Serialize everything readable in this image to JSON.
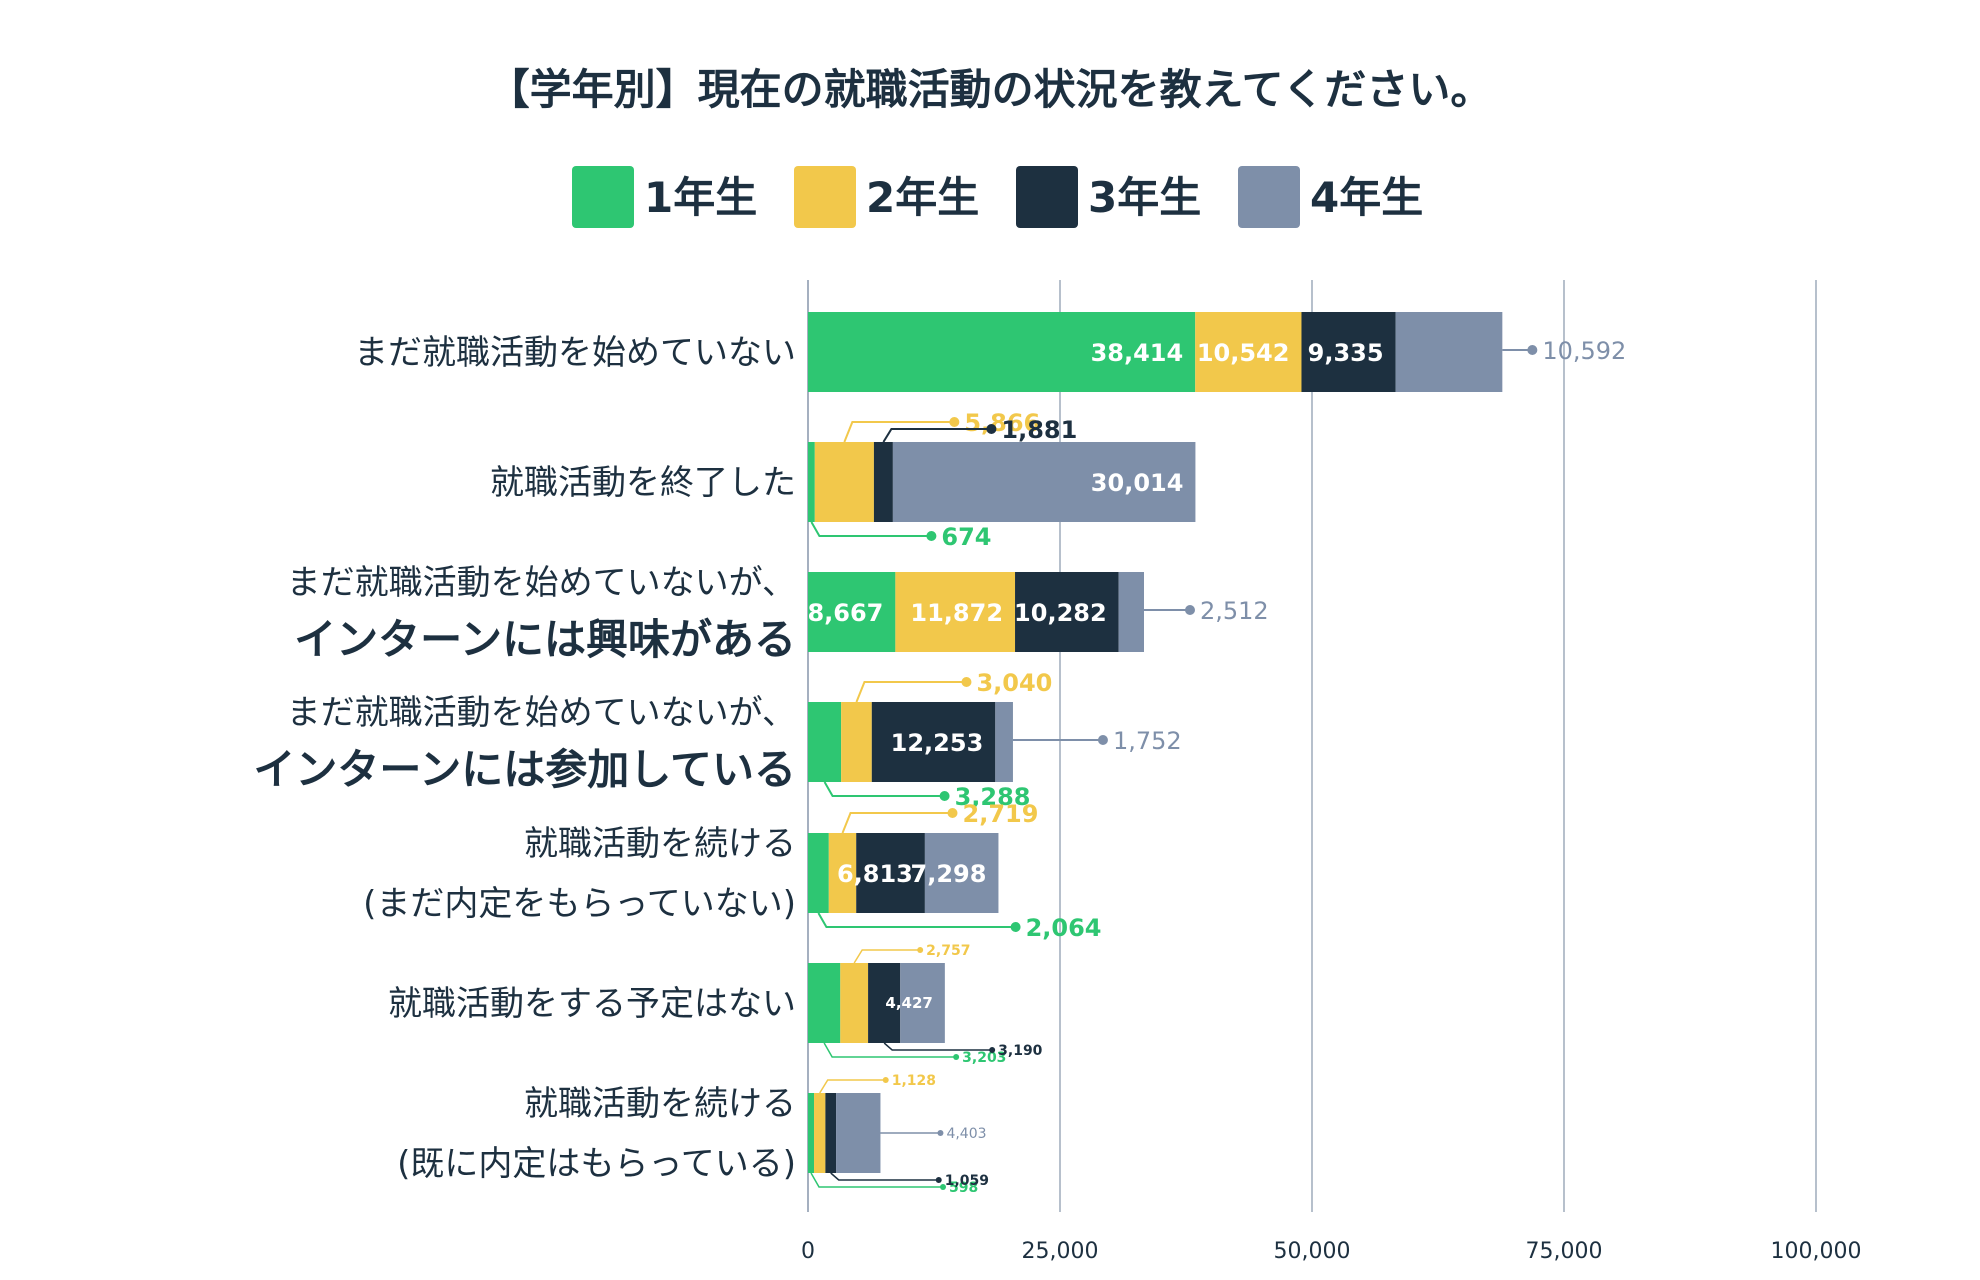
{
  "chart_data": {
    "type": "bar",
    "orientation": "horizontal",
    "stacked": true,
    "title": "【学年別】現在の就職活動の状況を教えてください。",
    "xlim": [
      0,
      100000
    ],
    "x_ticks": [
      0,
      25000,
      50000,
      75000,
      100000
    ],
    "x_tick_labels": [
      "0",
      "25,000",
      "50,000",
      "75,000",
      "100,000"
    ],
    "grid": true,
    "legend_position": "top-center",
    "categories": [
      {
        "lines": [
          {
            "text": "まだ就職活動を始めていない",
            "bold": false
          }
        ]
      },
      {
        "lines": [
          {
            "text": "就職活動を終了した",
            "bold": false
          }
        ]
      },
      {
        "lines": [
          {
            "text": "まだ就職活動を始めていないが、",
            "bold": false
          },
          {
            "text": "インターンには興味がある",
            "bold": true
          }
        ]
      },
      {
        "lines": [
          {
            "text": "まだ就職活動を始めていないが、",
            "bold": false
          },
          {
            "text": "インターンには参加している",
            "bold": true
          }
        ]
      },
      {
        "lines": [
          {
            "text": "就職活動を続ける",
            "bold": false
          },
          {
            "text": "(まだ内定をもらっていない)",
            "bold": false
          }
        ]
      },
      {
        "lines": [
          {
            "text": "就職活動をする予定はない",
            "bold": false
          }
        ]
      },
      {
        "lines": [
          {
            "text": "就職活動を続ける",
            "bold": false
          },
          {
            "text": "(既に内定はもらっている)",
            "bold": false
          }
        ]
      }
    ],
    "series": [
      {
        "name": "1年生",
        "color": "#2ec672",
        "values": [
          38414,
          674,
          8667,
          3288,
          2064,
          3203,
          598
        ],
        "value_labels": [
          "38,414",
          "674",
          "8,667",
          "3,288",
          "2,064",
          "3,203",
          "598"
        ]
      },
      {
        "name": "2年生",
        "color": "#f2c84b",
        "values": [
          10542,
          5866,
          11872,
          3040,
          2719,
          2757,
          1128
        ],
        "value_labels": [
          "10,542",
          "5,866",
          "11,872",
          "3,040",
          "2,719",
          "2,757",
          "1,128"
        ]
      },
      {
        "name": "3年生",
        "color": "#1d3040",
        "values": [
          9335,
          1881,
          10282,
          12253,
          6813,
          3190,
          1059
        ],
        "value_labels": [
          "9,335",
          "1,881",
          "10,282",
          "12,253",
          "6,813",
          "3,190",
          "1,059"
        ]
      },
      {
        "name": "4年生",
        "color": "#7e8fa9",
        "values": [
          10592,
          30014,
          2512,
          1752,
          7298,
          4427,
          4403
        ],
        "value_labels": [
          "10,592",
          "30,014",
          "2,512",
          "1,752",
          "7,298",
          "4,427",
          "4,403"
        ]
      }
    ],
    "label_modes": [
      [
        "in",
        "in",
        "in",
        "cr"
      ],
      [
        "cb",
        "ct",
        "ct",
        "in"
      ],
      [
        "in",
        "in",
        "in",
        "cr"
      ],
      [
        "cb",
        "ct",
        "in",
        "cr"
      ],
      [
        "cb",
        "ct",
        "in",
        "in"
      ],
      [
        "cb",
        "ct",
        "cb",
        "in"
      ],
      [
        "cb",
        "ct",
        "cb",
        "cr"
      ]
    ]
  }
}
